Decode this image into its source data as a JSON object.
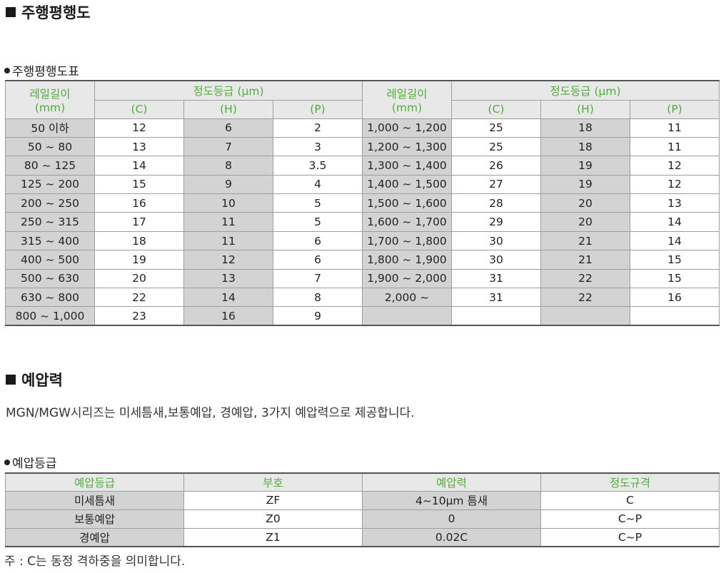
{
  "section1": {
    "heading": "주행평행도",
    "subheading": "주행평행도표",
    "table": {
      "length_header_1": "레일길이",
      "length_header_2": "(mm)",
      "accuracy_header": "정도등급 (μm)",
      "grades": [
        "(C)",
        "(H)",
        "(P)"
      ],
      "left_rows": [
        [
          "50 이하",
          "12",
          "6",
          "2"
        ],
        [
          "50 ~ 80",
          "13",
          "7",
          "3"
        ],
        [
          "80 ~ 125",
          "14",
          "8",
          "3.5"
        ],
        [
          "125 ~ 200",
          "15",
          "9",
          "4"
        ],
        [
          "200 ~ 250",
          "16",
          "10",
          "5"
        ],
        [
          "250 ~ 315",
          "17",
          "11",
          "5"
        ],
        [
          "315 ~ 400",
          "18",
          "11",
          "6"
        ],
        [
          "400 ~ 500",
          "19",
          "12",
          "6"
        ],
        [
          "500 ~ 630",
          "20",
          "13",
          "7"
        ],
        [
          "630 ~ 800",
          "22",
          "14",
          "8"
        ],
        [
          "800 ~ 1,000",
          "23",
          "16",
          "9"
        ]
      ],
      "right_rows": [
        [
          "1,000 ~ 1,200",
          "25",
          "18",
          "11"
        ],
        [
          "1,200 ~ 1,300",
          "25",
          "18",
          "11"
        ],
        [
          "1,300 ~ 1,400",
          "26",
          "19",
          "12"
        ],
        [
          "1,400 ~ 1,500",
          "27",
          "19",
          "12"
        ],
        [
          "1,500 ~ 1,600",
          "28",
          "20",
          "13"
        ],
        [
          "1,600 ~ 1,700",
          "29",
          "20",
          "14"
        ],
        [
          "1,700 ~ 1,800",
          "30",
          "21",
          "14"
        ],
        [
          "1,800 ~ 1,900",
          "30",
          "21",
          "15"
        ],
        [
          "1,900 ~ 2,000",
          "31",
          "22",
          "15"
        ],
        [
          "2,000 ~",
          "31",
          "22",
          "16"
        ],
        [
          "",
          "",
          "",
          ""
        ]
      ]
    }
  },
  "section2": {
    "heading": "예압력",
    "description": "MGN/MGW시리즈는 미세틈새,보통예압, 경예압, 3가지 예압력으로 제공합니다.",
    "subheading": "예압등급",
    "table": {
      "headers": [
        "예압등급",
        "부호",
        "예압력",
        "정도규격"
      ],
      "rows": [
        [
          "미세틈새",
          "ZF",
          "4~10μm 틈새",
          "C"
        ],
        [
          "보통예압",
          "Z0",
          "0",
          "C~P"
        ],
        [
          "경예압",
          "Z1",
          "0.02C",
          "C~P"
        ]
      ]
    },
    "note": "주 : C는 동정 격하중을 의미합니다."
  },
  "colors": {
    "header_text": "#4fae3a",
    "shade": "#d3d3d3",
    "header_bg": "#e8e8e8"
  }
}
